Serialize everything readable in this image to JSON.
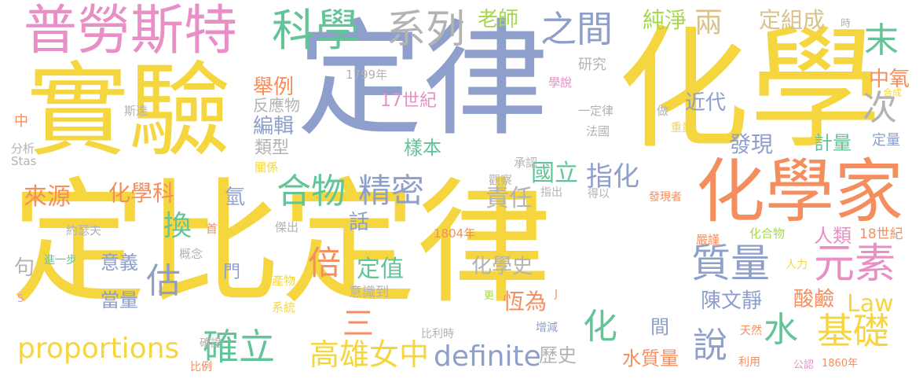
{
  "colors": {
    "yellow": "#f5d63e",
    "blue": "#8d9fca",
    "orange": "#f58e5f",
    "green": "#63c497",
    "pink": "#e88fc5",
    "lime": "#a6d84b",
    "tan": "#d9c28c",
    "gray": "#b3b3b3"
  },
  "words": [
    {
      "text": "定律"
    },
    {
      "text": "化學"
    },
    {
      "text": "實驗"
    },
    {
      "text": "定比定律"
    },
    {
      "text": "化學家"
    },
    {
      "text": "普勞斯特"
    },
    {
      "text": "科學"
    },
    {
      "text": "系列"
    },
    {
      "text": "之間"
    },
    {
      "text": "老師"
    },
    {
      "text": "純淨"
    },
    {
      "text": "兩"
    },
    {
      "text": "定組成"
    },
    {
      "text": "末"
    },
    {
      "text": "次"
    },
    {
      "text": "合物"
    },
    {
      "text": "精密"
    },
    {
      "text": "元素"
    },
    {
      "text": "質量"
    },
    {
      "text": "倍"
    },
    {
      "text": "估"
    },
    {
      "text": "說"
    },
    {
      "text": "水"
    },
    {
      "text": "基礎"
    },
    {
      "text": "proportions"
    },
    {
      "text": "definite"
    },
    {
      "text": "確立"
    },
    {
      "text": "高雄女中"
    },
    {
      "text": "三"
    },
    {
      "text": "化"
    },
    {
      "text": "Law"
    },
    {
      "text": "指化"
    },
    {
      "text": "國立"
    },
    {
      "text": "責任"
    },
    {
      "text": "來源"
    },
    {
      "text": "化學科"
    },
    {
      "text": "換"
    },
    {
      "text": "樣本"
    },
    {
      "text": "舉例"
    },
    {
      "text": "編輯"
    },
    {
      "text": "類型"
    },
    {
      "text": "發現"
    },
    {
      "text": "近代"
    },
    {
      "text": "計量"
    },
    {
      "text": "中氧"
    },
    {
      "text": "17世紀"
    },
    {
      "text": "話"
    },
    {
      "text": "定值"
    },
    {
      "text": "恆為"
    },
    {
      "text": "陳文靜"
    },
    {
      "text": "酸鹼"
    },
    {
      "text": "人類"
    },
    {
      "text": "意義"
    },
    {
      "text": "當量"
    },
    {
      "text": "化學史"
    },
    {
      "text": "間"
    },
    {
      "text": "水質量"
    },
    {
      "text": "歷史"
    },
    {
      "text": "研究"
    },
    {
      "text": "反應物"
    },
    {
      "text": "1799年"
    },
    {
      "text": "學說"
    },
    {
      "text": "斯達"
    },
    {
      "text": "分析"
    },
    {
      "text": "Stas"
    },
    {
      "text": "關係"
    },
    {
      "text": "中"
    },
    {
      "text": "氫"
    },
    {
      "text": "句"
    },
    {
      "text": "首"
    },
    {
      "text": "約瑟夫"
    },
    {
      "text": "進一步"
    },
    {
      "text": "概念"
    },
    {
      "text": "傑出"
    },
    {
      "text": "門"
    },
    {
      "text": "產物"
    },
    {
      "text": "系統"
    },
    {
      "text": "意識到"
    },
    {
      "text": "1804年"
    },
    {
      "text": "嚴謹"
    },
    {
      "text": "化合物"
    },
    {
      "text": "18世紀"
    },
    {
      "text": "人力"
    },
    {
      "text": "承認"
    },
    {
      "text": "觀察"
    },
    {
      "text": "指出"
    },
    {
      "text": "得以"
    },
    {
      "text": "發現者"
    },
    {
      "text": "一定律"
    },
    {
      "text": "法國"
    },
    {
      "text": "做"
    },
    {
      "text": "重量"
    },
    {
      "text": "定量"
    },
    {
      "text": "合成"
    },
    {
      "text": "時"
    },
    {
      "text": "增減"
    },
    {
      "text": "天然"
    },
    {
      "text": "比利時"
    },
    {
      "text": "確證"
    },
    {
      "text": "比例"
    },
    {
      "text": "利用"
    },
    {
      "text": "公認"
    },
    {
      "text": "1860年"
    },
    {
      "text": "更"
    },
    {
      "text": "S"
    },
    {
      "text": "J"
    }
  ]
}
